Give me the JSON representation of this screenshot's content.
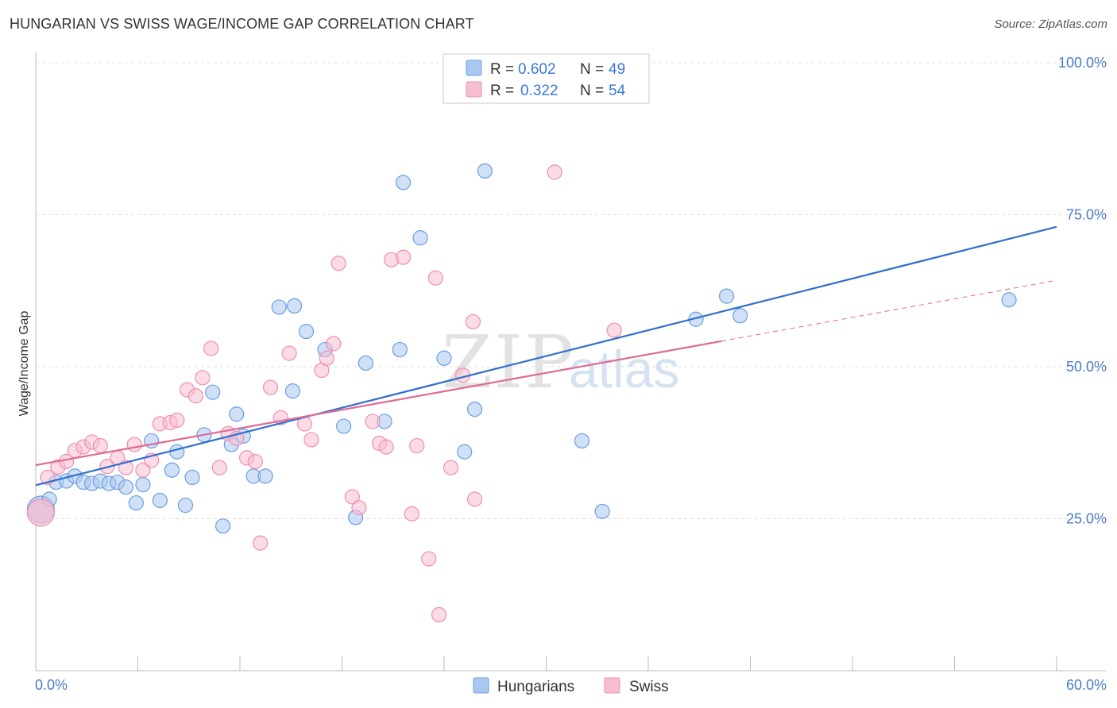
{
  "title": "HUNGARIAN VS SWISS WAGE/INCOME GAP CORRELATION CHART",
  "source": "Source: ZipAtlas.com",
  "colors": {
    "blue_fill": "#a9c8f0",
    "blue_stroke": "#6a9ee0",
    "blue_line": "#2f6fd0",
    "pink_fill": "#f7bdd0",
    "pink_stroke": "#ee8fb0",
    "pink_line": "#e06a92",
    "grid": "#dddddd",
    "tick_text": "#4a7cc7"
  },
  "legend": {
    "rows": [
      {
        "r_label": "R =",
        "r_value": "0.602",
        "n_label": "N =",
        "n_value": "49",
        "color": "blue"
      },
      {
        "r_label": "R =",
        "r_value": "0.322",
        "n_label": "N =",
        "n_value": "54",
        "color": "pink"
      }
    ],
    "bottom": [
      "Hungarians",
      "Swiss"
    ]
  },
  "watermark": {
    "zip": "ZIP",
    "atlas": "atlas"
  },
  "chart_data": {
    "type": "scatter",
    "title": "HUNGARIAN VS SWISS WAGE/INCOME GAP CORRELATION CHART",
    "xlabel": "",
    "ylabel": "Wage/Income Gap",
    "xlim": [
      0,
      60
    ],
    "ylim": [
      0,
      100
    ],
    "x_tick_labels": [
      "0.0%",
      "60.0%"
    ],
    "y_ticks": [
      25,
      50,
      75,
      100
    ],
    "y_tick_labels": [
      "25.0%",
      "50.0%",
      "75.0%",
      "100.0%"
    ],
    "grid": true,
    "legend_position": "top-center",
    "series": [
      {
        "name": "Hungarians",
        "color": "blue",
        "points": [
          [
            0.3,
            26.5
          ],
          [
            0.8,
            28.2
          ],
          [
            1.2,
            31.0
          ],
          [
            1.8,
            31.2
          ],
          [
            2.3,
            32.0
          ],
          [
            2.8,
            31.0
          ],
          [
            3.3,
            30.8
          ],
          [
            3.8,
            31.2
          ],
          [
            4.3,
            30.8
          ],
          [
            4.8,
            31.0
          ],
          [
            5.3,
            30.2
          ],
          [
            5.9,
            27.6
          ],
          [
            6.3,
            30.6
          ],
          [
            6.8,
            37.8
          ],
          [
            7.3,
            28.0
          ],
          [
            8.0,
            33.0
          ],
          [
            8.3,
            36.0
          ],
          [
            8.8,
            27.2
          ],
          [
            9.2,
            31.8
          ],
          [
            9.9,
            38.8
          ],
          [
            10.4,
            45.8
          ],
          [
            11.0,
            23.8
          ],
          [
            11.5,
            37.2
          ],
          [
            11.8,
            42.2
          ],
          [
            12.2,
            38.6
          ],
          [
            12.8,
            32.0
          ],
          [
            13.5,
            32.0
          ],
          [
            14.3,
            59.8
          ],
          [
            15.1,
            46.0
          ],
          [
            15.2,
            60.0
          ],
          [
            15.9,
            55.8
          ],
          [
            17.0,
            52.8
          ],
          [
            18.1,
            40.2
          ],
          [
            18.8,
            25.2
          ],
          [
            19.4,
            50.6
          ],
          [
            20.5,
            41.0
          ],
          [
            21.4,
            52.8
          ],
          [
            21.6,
            80.3
          ],
          [
            22.6,
            71.2
          ],
          [
            24.0,
            51.4
          ],
          [
            25.2,
            36.0
          ],
          [
            25.8,
            43.0
          ],
          [
            26.4,
            82.2
          ],
          [
            32.1,
            37.8
          ],
          [
            33.3,
            26.2
          ],
          [
            38.8,
            57.8
          ],
          [
            40.6,
            61.6
          ],
          [
            41.4,
            58.4
          ],
          [
            57.2,
            61.0
          ]
        ],
        "trend": {
          "x": [
            0,
            60
          ],
          "y": [
            30.5,
            73.0
          ]
        }
      },
      {
        "name": "Swiss",
        "color": "pink",
        "points": [
          [
            0.3,
            26.0
          ],
          [
            0.7,
            31.8
          ],
          [
            1.3,
            33.5
          ],
          [
            1.8,
            34.4
          ],
          [
            2.3,
            36.2
          ],
          [
            2.8,
            36.8
          ],
          [
            3.3,
            37.6
          ],
          [
            3.8,
            37.0
          ],
          [
            4.2,
            33.6
          ],
          [
            4.8,
            35.0
          ],
          [
            5.3,
            33.4
          ],
          [
            5.8,
            37.2
          ],
          [
            6.3,
            33.0
          ],
          [
            6.8,
            34.6
          ],
          [
            7.3,
            40.6
          ],
          [
            7.9,
            40.8
          ],
          [
            8.3,
            41.2
          ],
          [
            8.9,
            46.2
          ],
          [
            9.4,
            45.2
          ],
          [
            9.8,
            48.2
          ],
          [
            10.3,
            53.0
          ],
          [
            10.8,
            33.4
          ],
          [
            11.3,
            39.0
          ],
          [
            11.8,
            38.2
          ],
          [
            12.4,
            35.0
          ],
          [
            12.9,
            34.4
          ],
          [
            13.2,
            21.0
          ],
          [
            13.8,
            46.6
          ],
          [
            14.4,
            41.6
          ],
          [
            14.9,
            52.2
          ],
          [
            15.8,
            40.6
          ],
          [
            16.2,
            38.0
          ],
          [
            16.8,
            49.4
          ],
          [
            17.1,
            51.4
          ],
          [
            17.5,
            53.8
          ],
          [
            17.8,
            67.0
          ],
          [
            18.6,
            28.6
          ],
          [
            19.0,
            26.8
          ],
          [
            19.8,
            41.0
          ],
          [
            20.2,
            37.4
          ],
          [
            20.6,
            36.8
          ],
          [
            20.9,
            67.6
          ],
          [
            21.6,
            68.0
          ],
          [
            22.1,
            25.8
          ],
          [
            22.4,
            37.0
          ],
          [
            23.1,
            18.4
          ],
          [
            23.5,
            64.6
          ],
          [
            23.7,
            9.2
          ],
          [
            24.4,
            33.4
          ],
          [
            25.1,
            48.6
          ],
          [
            25.7,
            57.4
          ],
          [
            25.8,
            28.2
          ],
          [
            30.5,
            82.0
          ],
          [
            34.0,
            56.0
          ]
        ],
        "trend": {
          "x": [
            0,
            40.3
          ],
          "y": [
            33.8,
            54.2
          ]
        },
        "trend_extension": {
          "x": [
            40.3,
            60
          ],
          "y": [
            54.2,
            64.2
          ]
        }
      }
    ]
  }
}
